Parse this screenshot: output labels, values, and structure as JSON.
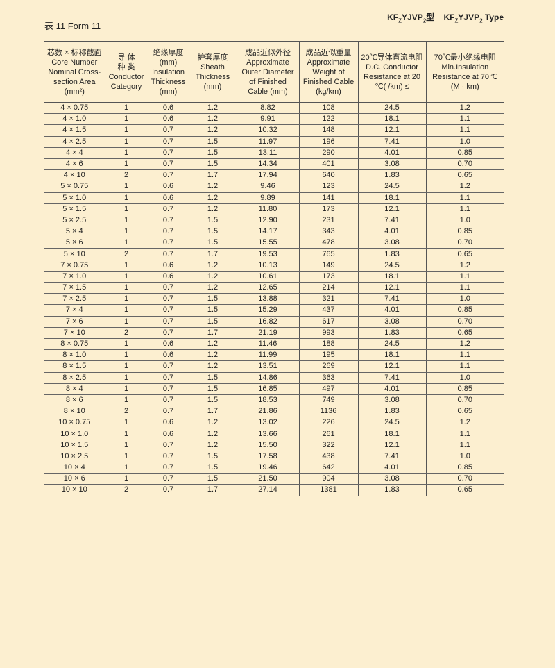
{
  "page": {
    "form_title": "表 11 Form 11",
    "type_title_cn": "KFZYJVP2型",
    "type_title_en": "KFZYJVP2 Type"
  },
  "table": {
    "headers": [
      "芯数 × 标称截面\nCore Number\nNominal Cross-\nsection Area\n(mm²)",
      "导 体\n种 类\nConductor\nCategory",
      "绝缘厚度\n(mm)\nInsulation\nThickness\n(mm)",
      "护套厚度\nSheath\nThickness\n(mm)",
      "成品近似外径\nApproximate\nOuter Diameter\nof Finished\nCable (mm)",
      "成品近似重量\nApproximate\nWeight of\nFinished Cable\n(kg/km)",
      "20℃导体直流电阻\nD.C. Conductor\nResistance at 20\n℃(   /km) ≤",
      "70℃最小绝缘电阻\nMin.Insulation\nResistance at 70℃\n(M    · km)"
    ],
    "rows": [
      [
        "4 × 0.75",
        "1",
        "0.6",
        "1.2",
        "8.82",
        "108",
        "24.5",
        "1.2"
      ],
      [
        "4 × 1.0",
        "1",
        "0.6",
        "1.2",
        "9.91",
        "122",
        "18.1",
        "1.1"
      ],
      [
        "4 × 1.5",
        "1",
        "0.7",
        "1.2",
        "10.32",
        "148",
        "12.1",
        "1.1"
      ],
      [
        "4 × 2.5",
        "1",
        "0.7",
        "1.5",
        "11.97",
        "196",
        "7.41",
        "1.0"
      ],
      [
        "4 × 4",
        "1",
        "0.7",
        "1.5",
        "13.11",
        "290",
        "4.01",
        "0.85"
      ],
      [
        "4 × 6",
        "1",
        "0.7",
        "1.5",
        "14.34",
        "401",
        "3.08",
        "0.70"
      ],
      [
        "4 × 10",
        "2",
        "0.7",
        "1.7",
        "17.94",
        "640",
        "1.83",
        "0.65"
      ],
      [
        "5 × 0.75",
        "1",
        "0.6",
        "1.2",
        "9.46",
        "123",
        "24.5",
        "1.2"
      ],
      [
        "5 × 1.0",
        "1",
        "0.6",
        "1.2",
        "9.89",
        "141",
        "18.1",
        "1.1"
      ],
      [
        "5 × 1.5",
        "1",
        "0.7",
        "1.2",
        "11.80",
        "173",
        "12.1",
        "1.1"
      ],
      [
        "5 × 2.5",
        "1",
        "0.7",
        "1.5",
        "12.90",
        "231",
        "7.41",
        "1.0"
      ],
      [
        "5 × 4",
        "1",
        "0.7",
        "1.5",
        "14.17",
        "343",
        "4.01",
        "0.85"
      ],
      [
        "5 × 6",
        "1",
        "0.7",
        "1.5",
        "15.55",
        "478",
        "3.08",
        "0.70"
      ],
      [
        "5 × 10",
        "2",
        "0.7",
        "1.7",
        "19.53",
        "765",
        "1.83",
        "0.65"
      ],
      [
        "7 × 0.75",
        "1",
        "0.6",
        "1.2",
        "10.13",
        "149",
        "24.5",
        "1.2"
      ],
      [
        "7 × 1.0",
        "1",
        "0.6",
        "1.2",
        "10.61",
        "173",
        "18.1",
        "1.1"
      ],
      [
        "7 × 1.5",
        "1",
        "0.7",
        "1.2",
        "12.65",
        "214",
        "12.1",
        "1.1"
      ],
      [
        "7 × 2.5",
        "1",
        "0.7",
        "1.5",
        "13.88",
        "321",
        "7.41",
        "1.0"
      ],
      [
        "7 × 4",
        "1",
        "0.7",
        "1.5",
        "15.29",
        "437",
        "4.01",
        "0.85"
      ],
      [
        "7 × 6",
        "1",
        "0.7",
        "1.5",
        "16.82",
        "617",
        "3.08",
        "0.70"
      ],
      [
        "7 × 10",
        "2",
        "0.7",
        "1.7",
        "21.19",
        "993",
        "1.83",
        "0.65"
      ],
      [
        "8 × 0.75",
        "1",
        "0.6",
        "1.2",
        "11.46",
        "188",
        "24.5",
        "1.2"
      ],
      [
        "8 × 1.0",
        "1",
        "0.6",
        "1.2",
        "11.99",
        "195",
        "18.1",
        "1.1"
      ],
      [
        "8 × 1.5",
        "1",
        "0.7",
        "1.2",
        "13.51",
        "269",
        "12.1",
        "1.1"
      ],
      [
        "8 × 2.5",
        "1",
        "0.7",
        "1.5",
        "14.86",
        "363",
        "7.41",
        "1.0"
      ],
      [
        "8 × 4",
        "1",
        "0.7",
        "1.5",
        "16.85",
        "497",
        "4.01",
        "0.85"
      ],
      [
        "8 × 6",
        "1",
        "0.7",
        "1.5",
        "18.53",
        "749",
        "3.08",
        "0.70"
      ],
      [
        "8 × 10",
        "2",
        "0.7",
        "1.7",
        "21.86",
        "1136",
        "1.83",
        "0.65"
      ],
      [
        "10 × 0.75",
        "1",
        "0.6",
        "1.2",
        "13.02",
        "226",
        "24.5",
        "1.2"
      ],
      [
        "10 × 1.0",
        "1",
        "0.6",
        "1.2",
        "13.66",
        "261",
        "18.1",
        "1.1"
      ],
      [
        "10 × 1.5",
        "1",
        "0.7",
        "1.2",
        "15.50",
        "322",
        "12.1",
        "1.1"
      ],
      [
        "10 × 2.5",
        "1",
        "0.7",
        "1.5",
        "17.58",
        "438",
        "7.41",
        "1.0"
      ],
      [
        "10 × 4",
        "1",
        "0.7",
        "1.5",
        "19.46",
        "642",
        "4.01",
        "0.85"
      ],
      [
        "10 × 6",
        "1",
        "0.7",
        "1.5",
        "21.50",
        "904",
        "3.08",
        "0.70"
      ],
      [
        "10 × 10",
        "2",
        "0.7",
        "1.7",
        "27.14",
        "1381",
        "1.83",
        "0.65"
      ]
    ]
  },
  "colors": {
    "background": "#fcefd0",
    "rule": "#555555"
  }
}
